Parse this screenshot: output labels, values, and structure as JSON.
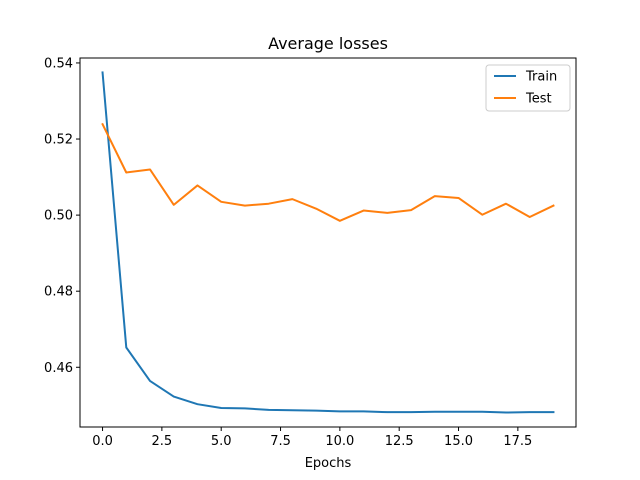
{
  "chart_data": {
    "type": "line",
    "title": "Average losses",
    "xlabel": "Epochs",
    "ylabel": "",
    "xlim": [
      -0.95,
      19.95
    ],
    "ylim": [
      0.4443,
      0.5413
    ],
    "x_ticks": [
      0,
      2.5,
      5,
      7.5,
      10,
      12.5,
      15,
      17.5
    ],
    "x_tick_labels": [
      "0.0",
      "2.5",
      "5.0",
      "7.5",
      "10.0",
      "12.5",
      "15.0",
      "17.5"
    ],
    "y_ticks": [
      0.46,
      0.48,
      0.5,
      0.52,
      0.54
    ],
    "y_tick_labels": [
      "0.46",
      "0.48",
      "0.50",
      "0.52",
      "0.54"
    ],
    "grid": false,
    "legend_position": "top-right",
    "x": [
      0,
      1,
      2,
      3,
      4,
      5,
      6,
      7,
      8,
      9,
      10,
      11,
      12,
      13,
      14,
      15,
      16,
      17,
      18,
      19
    ],
    "series": [
      {
        "name": "Train",
        "color": "#1f77b4",
        "values": [
          0.5375,
          0.4652,
          0.4564,
          0.4523,
          0.4503,
          0.4493,
          0.4492,
          0.4488,
          0.4487,
          0.4486,
          0.4484,
          0.4484,
          0.4482,
          0.4482,
          0.4483,
          0.4483,
          0.4483,
          0.4481,
          0.4482,
          0.4482
        ]
      },
      {
        "name": "Test",
        "color": "#ff7f0e",
        "values": [
          0.5239,
          0.5112,
          0.512,
          0.5027,
          0.5078,
          0.5035,
          0.5025,
          0.503,
          0.5042,
          0.5017,
          0.4985,
          0.5012,
          0.5006,
          0.5013,
          0.505,
          0.5045,
          0.5001,
          0.503,
          0.4995,
          0.5025
        ]
      }
    ]
  }
}
